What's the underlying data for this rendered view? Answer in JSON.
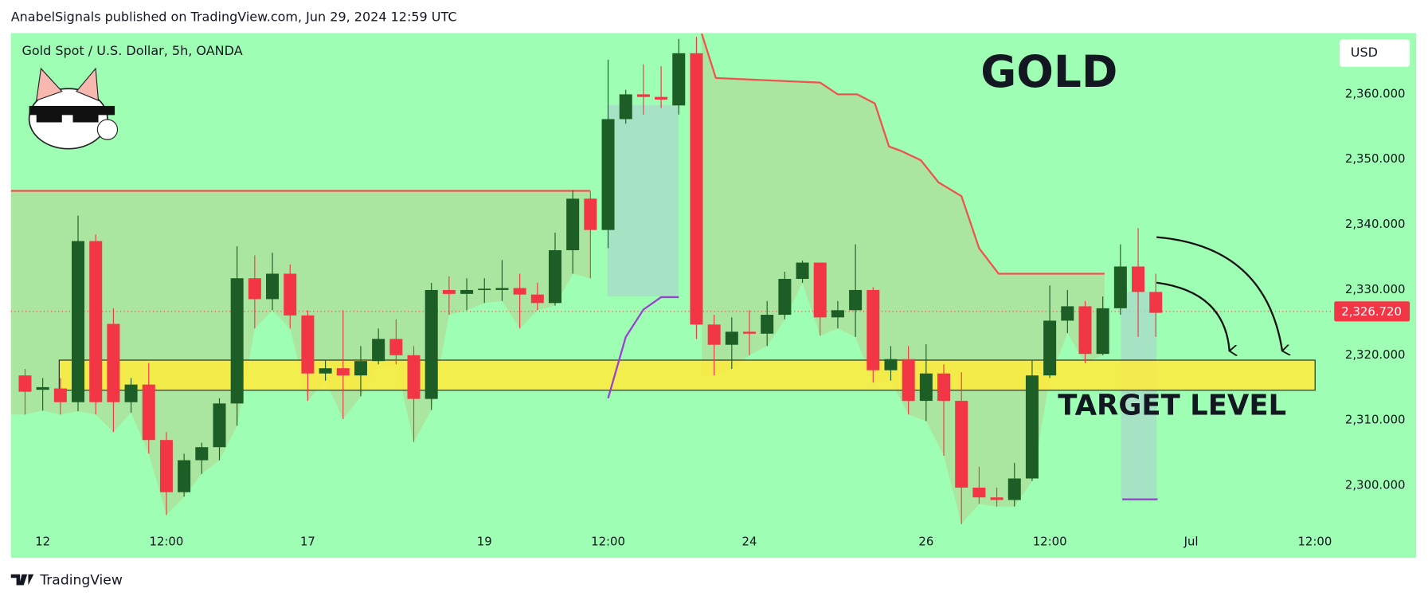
{
  "header": "AnabelSignals published on TradingView.com, Jun 29, 2024 12:59 UTC",
  "footer": "TradingView",
  "chart_data": {
    "type": "candlestick",
    "title": "Gold Spot / U.S. Dollar, 5h, OANDA",
    "currency": "USD",
    "annotations": [
      "GOLD",
      "TARGET LEVEL"
    ],
    "open": [
      2316.9,
      2314.7,
      2314.9,
      2312.8,
      2337.5,
      2324.8,
      2312.8,
      2315.5,
      2307,
      2299,
      2303.9,
      2305.9,
      2312.6,
      2331.8,
      2328.6,
      2332.5,
      2326.1,
      2317.2,
      2318,
      2316.9,
      2319.1,
      2322.5,
      2320,
      2313.3,
      2330,
      2329.4,
      2330,
      2330,
      2330.3,
      2329.3,
      2328,
      2336.1,
      2344,
      2339.2,
      2356.2,
      2360,
      2359.6,
      2358.3,
      2366.3,
      2324.7,
      2321.6,
      2323.6,
      2323.3,
      2326.2,
      2331.7,
      2334.2,
      2325.8,
      2326.9,
      2330,
      2317.7,
      2319.4,
      2313,
      2317.2,
      2313,
      2299.7,
      2298.2,
      2297.8,
      2301.1,
      2316.9,
      2325.3,
      2327.5,
      2320.2,
      2327.2,
      2333.6,
      2329.7
    ],
    "high": [
      2317.9,
      2316.5,
      2316.5,
      2341.4,
      2338.5,
      2327.2,
      2316.5,
      2318.8,
      2308.2,
      2304.9,
      2306.6,
      2313.4,
      2336.7,
      2335.3,
      2335.7,
      2333.9,
      2326.9,
      2319.3,
      2326.9,
      2321.4,
      2324.1,
      2325.5,
      2321.4,
      2331.1,
      2332.1,
      2331.8,
      2331.8,
      2334.6,
      2332.5,
      2331.1,
      2338.8,
      2345.3,
      2345.1,
      2365.3,
      2360.7,
      2364.6,
      2364.3,
      2368.5,
      2368.8,
      2326.2,
      2325.8,
      2326.9,
      2328.3,
      2332.8,
      2334.5,
      2334.2,
      2328.3,
      2337,
      2330.4,
      2321.4,
      2321.4,
      2321.7,
      2318.6,
      2317.4,
      2302.9,
      2299.7,
      2303.5,
      2319.3,
      2330.7,
      2330,
      2328.3,
      2329,
      2337,
      2339.5,
      2332.5
    ],
    "low": [
      2310.9,
      2311.5,
      2310.9,
      2311.4,
      2310.9,
      2308.2,
      2311.2,
      2304.9,
      2295.5,
      2298.3,
      2301.8,
      2303.9,
      2309.2,
      2324.1,
      2326.9,
      2324.1,
      2313,
      2316.1,
      2310.2,
      2313.7,
      2318.6,
      2318.6,
      2306.7,
      2311.6,
      2326.2,
      2326.9,
      2328,
      2328.3,
      2324.1,
      2326.9,
      2327.6,
      2332.5,
      2331.8,
      2336.4,
      2355.5,
      2356.9,
      2357.9,
      2356.9,
      2322.5,
      2316.9,
      2317.9,
      2320,
      2321.4,
      2325.5,
      2331.1,
      2323,
      2324.1,
      2322.8,
      2315.8,
      2316.1,
      2310.9,
      2309.9,
      2304.6,
      2294.1,
      2297.2,
      2296.8,
      2296.8,
      2300.7,
      2316.5,
      2323.4,
      2318.8,
      2320,
      2326.2,
      2322.8,
      2322.8
    ],
    "close": [
      2314.4,
      2315.1,
      2312.8,
      2337.5,
      2312.8,
      2312.8,
      2315.5,
      2307,
      2299,
      2303.9,
      2305.9,
      2312.6,
      2331.8,
      2328.6,
      2332.5,
      2326.1,
      2317.2,
      2318,
      2316.9,
      2319.1,
      2322.5,
      2320,
      2313.3,
      2330,
      2329.4,
      2330,
      2330.2,
      2330.3,
      2329.3,
      2328,
      2336.1,
      2344,
      2339.2,
      2356.2,
      2360,
      2359.6,
      2359.2,
      2366.3,
      2324.7,
      2321.6,
      2323.6,
      2323.3,
      2326.2,
      2331.7,
      2334.2,
      2325.8,
      2326.9,
      2330,
      2317.7,
      2319.4,
      2313,
      2317.2,
      2313,
      2299.7,
      2298.2,
      2297.8,
      2301.1,
      2316.9,
      2325.3,
      2327.5,
      2320.2,
      2327.2,
      2333.6,
      2329.7,
      2326.5
    ],
    "up_color": "#1d5e27",
    "down_color": "#f23645",
    "line_x": [
      -0.8,
      32,
      null,
      38.3,
      39.1,
      45,
      46,
      47.1,
      48.1,
      48.9,
      49.6,
      50.7,
      51.7,
      53,
      54,
      55.1,
      61.1
    ],
    "line_y": [
      2345.2,
      2345.2,
      null,
      2369.3,
      2362.5,
      2361.8,
      2360,
      2360,
      2358.6,
      2352,
      2351.3,
      2349.9,
      2346.5,
      2344.4,
      2336.4,
      2332.5,
      2332.5
    ],
    "line_color": "#f0524f",
    "line2_x": [
      33,
      34,
      35,
      36,
      37,
      null,
      62.1,
      64.1
    ],
    "line2_y": [
      2313.4,
      2322.8,
      2327,
      2328.9,
      2328.9,
      null,
      2297.9,
      2297.9
    ],
    "line2_color": "#9c3fd4",
    "last_price": {
      "value": 2326.72,
      "label": "2,326.720"
    },
    "xlim": [
      -0.8,
      74
    ],
    "ylim": [
      2293.4,
      2369.4
    ],
    "yticks": [
      {
        "value": 2300,
        "label": "2,300.000"
      },
      {
        "value": 2310,
        "label": "2,310.000"
      },
      {
        "value": 2320,
        "label": "2,320.000"
      },
      {
        "value": 2330,
        "label": "2,330.000"
      },
      {
        "value": 2340,
        "label": "2,340.000"
      },
      {
        "value": 2350,
        "label": "2,350.000"
      },
      {
        "value": 2360,
        "label": "2,360.000"
      }
    ],
    "xticks": [
      {
        "value": 1,
        "label": "12"
      },
      {
        "value": 8,
        "label": "12:00"
      },
      {
        "value": 16,
        "label": "17"
      },
      {
        "value": 26,
        "label": "19"
      },
      {
        "value": 33,
        "label": "12:00"
      },
      {
        "value": 41,
        "label": "24"
      },
      {
        "value": 51,
        "label": "26"
      },
      {
        "value": 58,
        "label": "12:00"
      },
      {
        "value": 66,
        "label": "Jul"
      },
      {
        "value": 73,
        "label": "12:00"
      }
    ]
  }
}
